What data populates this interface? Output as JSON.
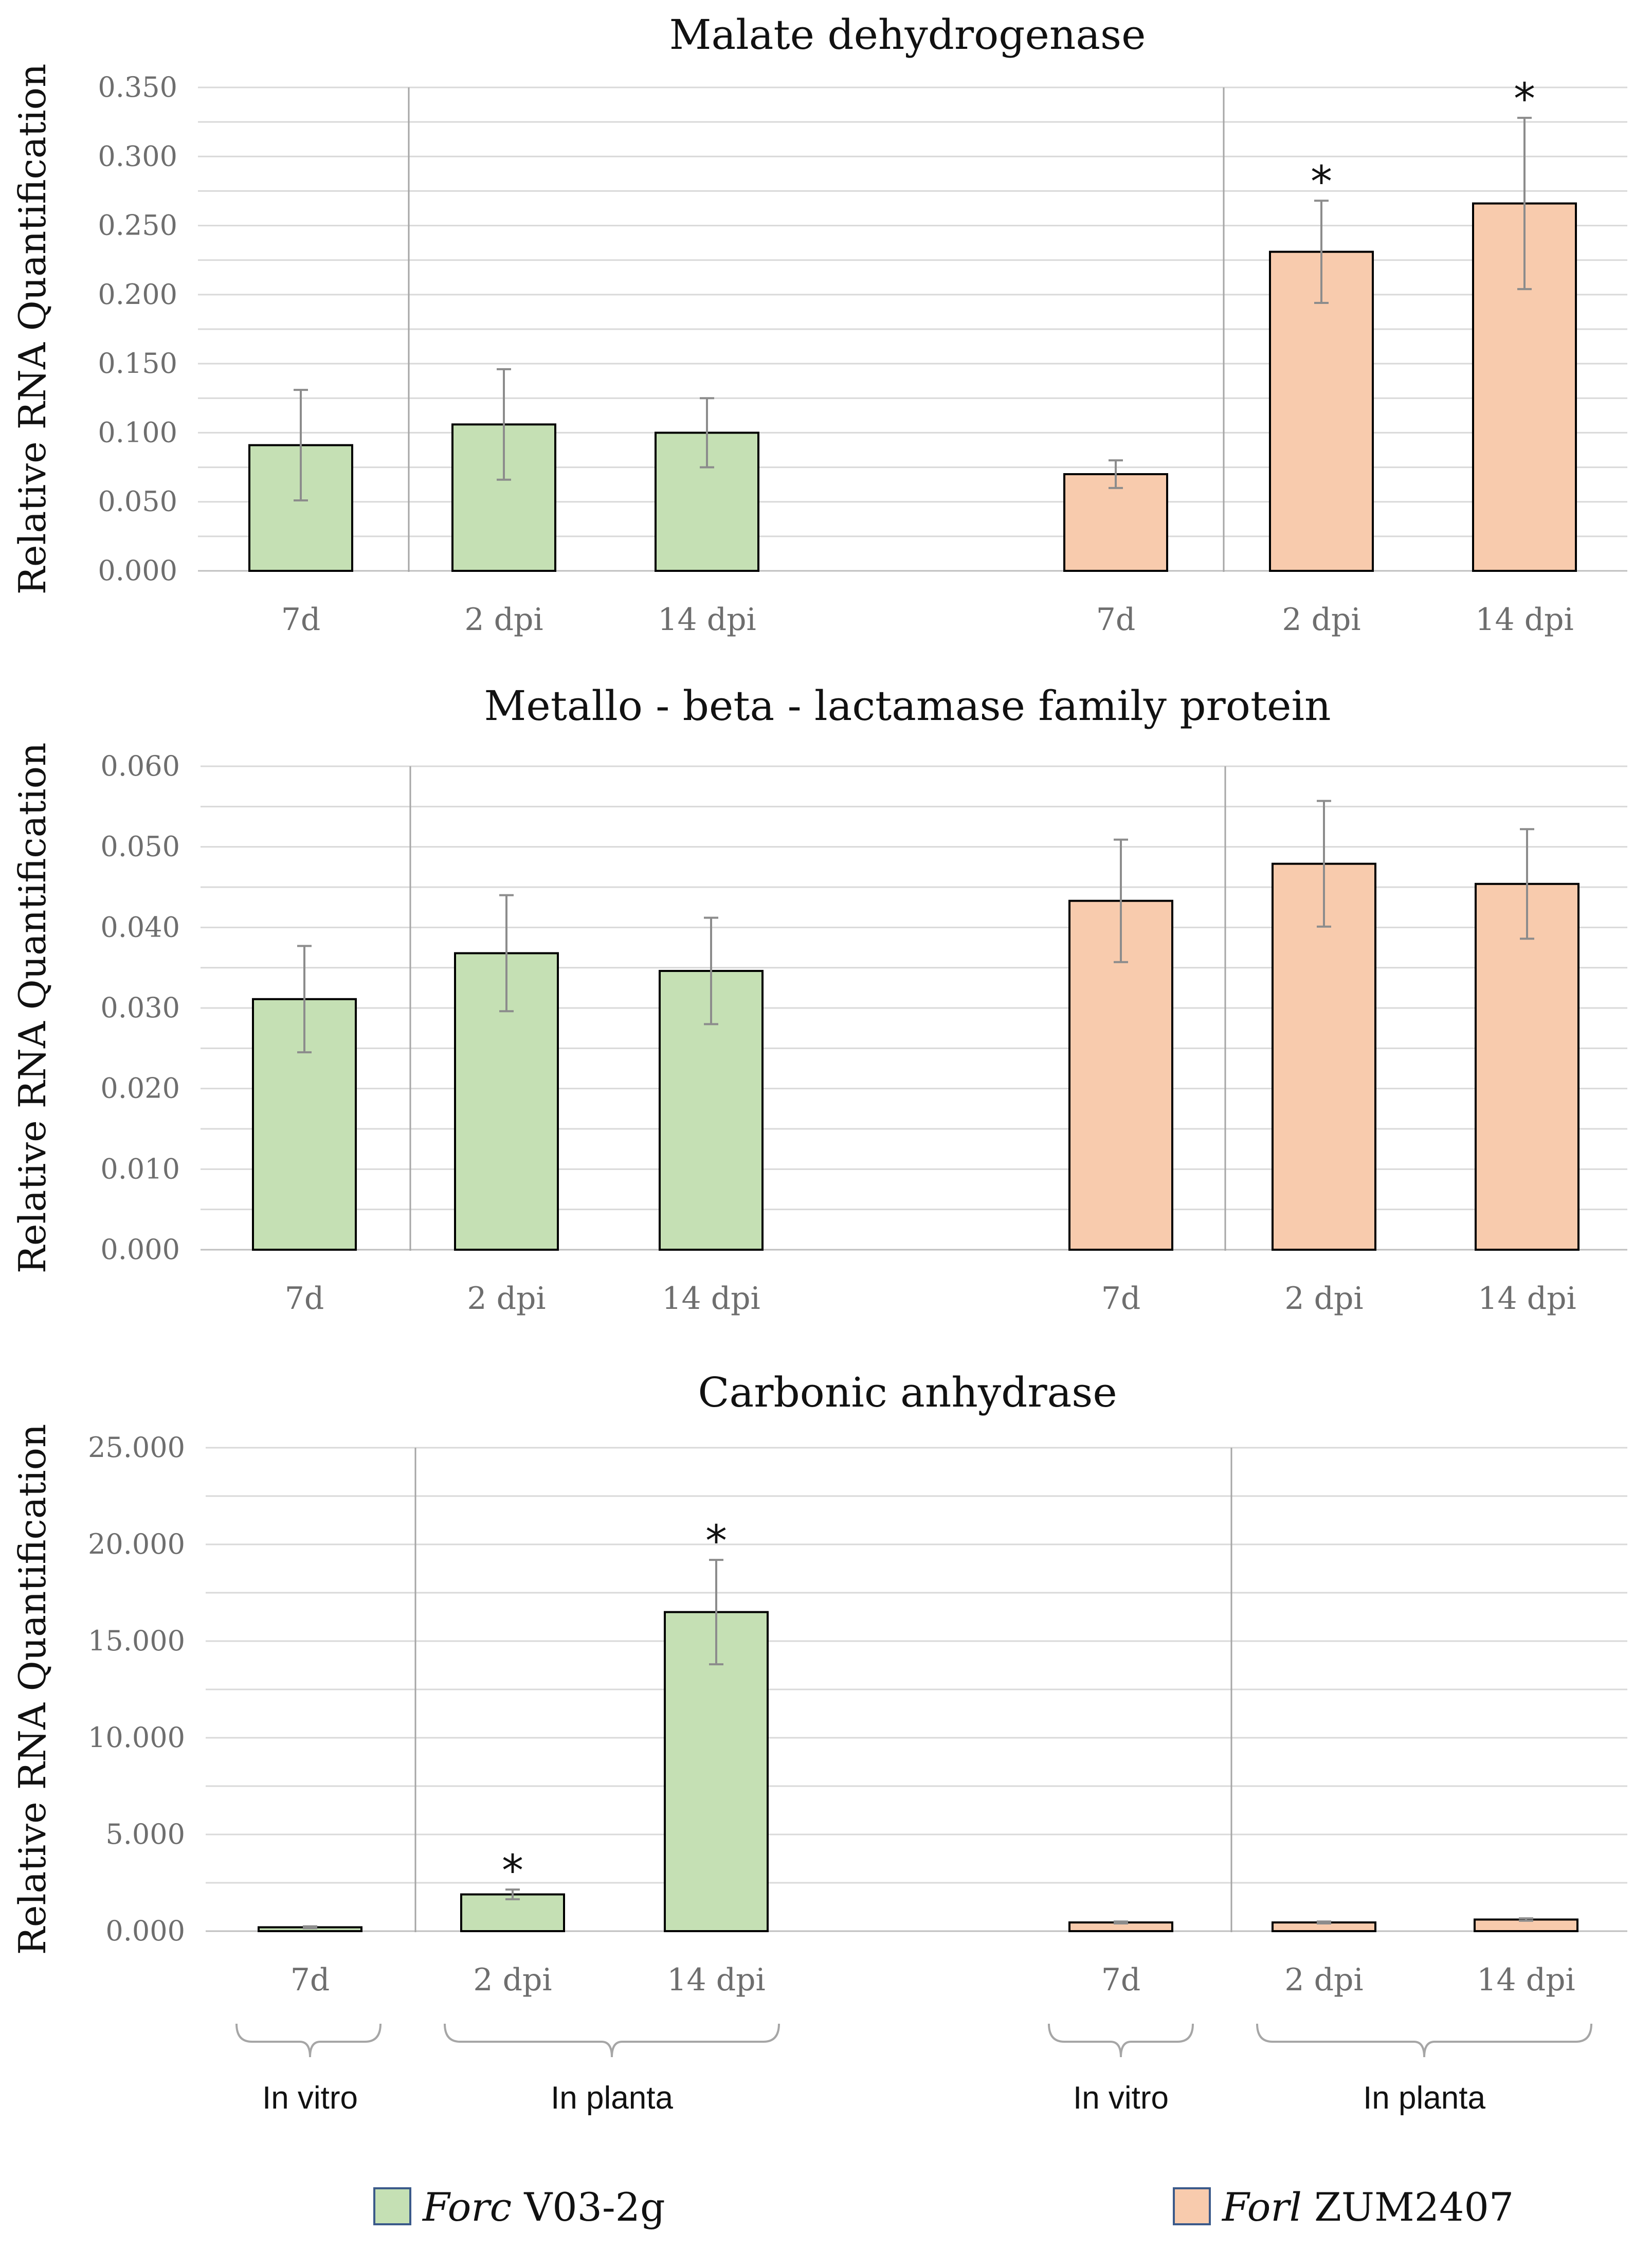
{
  "series_colors": {
    "forc": "#c5e0b4",
    "forl": "#f8cbad"
  },
  "chart_data": [
    {
      "type": "bar",
      "title": "Malate dehydrogenase",
      "ylabel": "Relative RNA Quantification",
      "ylim": [
        0,
        0.35
      ],
      "yticks": [
        "0.000",
        "0.050",
        "0.100",
        "0.150",
        "0.200",
        "0.250",
        "0.300",
        "0.350"
      ],
      "categories": [
        "7d",
        "2 dpi",
        "14 dpi",
        "7d",
        "2 dpi",
        "14 dpi"
      ],
      "values": [
        0.091,
        0.106,
        0.1,
        0.07,
        0.231,
        0.266
      ],
      "errors": [
        0.04,
        0.04,
        0.025,
        0.01,
        0.037,
        0.062
      ],
      "series_index": [
        0,
        0,
        0,
        1,
        1,
        1
      ],
      "significant": [
        false,
        false,
        false,
        false,
        true,
        true
      ],
      "star_symbol": "*"
    },
    {
      "type": "bar",
      "title": "Metallo - beta - lactamase family protein",
      "ylabel": "Relative RNA Quantification",
      "ylim": [
        0,
        0.06
      ],
      "yticks": [
        "0.000",
        "0.010",
        "0.020",
        "0.030",
        "0.040",
        "0.050",
        "0.060"
      ],
      "categories": [
        "7d",
        "2 dpi",
        "14 dpi",
        "7d",
        "2 dpi",
        "14 dpi"
      ],
      "values": [
        0.0311,
        0.0368,
        0.0346,
        0.0433,
        0.0479,
        0.0454
      ],
      "errors": [
        0.0066,
        0.0072,
        0.0066,
        0.0076,
        0.0078,
        0.0068
      ],
      "series_index": [
        0,
        0,
        0,
        1,
        1,
        1
      ],
      "significant": [
        false,
        false,
        false,
        false,
        false,
        false
      ],
      "star_symbol": "*"
    },
    {
      "type": "bar",
      "title": "Carbonic anhydrase",
      "ylabel": "Relative RNA Quantification",
      "ylim": [
        0,
        25
      ],
      "yticks": [
        "0.000",
        "5.000",
        "10.000",
        "15.000",
        "20.000",
        "25.000"
      ],
      "categories": [
        "7d",
        "2 dpi",
        "14 dpi",
        "7d",
        "2 dpi",
        "14 dpi"
      ],
      "values": [
        0.2,
        1.9,
        16.5,
        0.45,
        0.45,
        0.6
      ],
      "errors": [
        0.05,
        0.25,
        2.7,
        0.05,
        0.05,
        0.06
      ],
      "series_index": [
        0,
        0,
        0,
        1,
        1,
        1
      ],
      "significant": [
        false,
        true,
        true,
        false,
        false,
        false
      ],
      "star_symbol": "*"
    }
  ],
  "groups": [
    {
      "label": "In vitro"
    },
    {
      "label": "In planta"
    },
    {
      "label": "In vitro"
    },
    {
      "label": "In planta"
    }
  ],
  "legend": [
    {
      "italic": "Forc",
      "rest": " V03-2g",
      "color_key": "forc"
    },
    {
      "italic": "Forl",
      "rest": " ZUM2407",
      "color_key": "forl"
    }
  ]
}
